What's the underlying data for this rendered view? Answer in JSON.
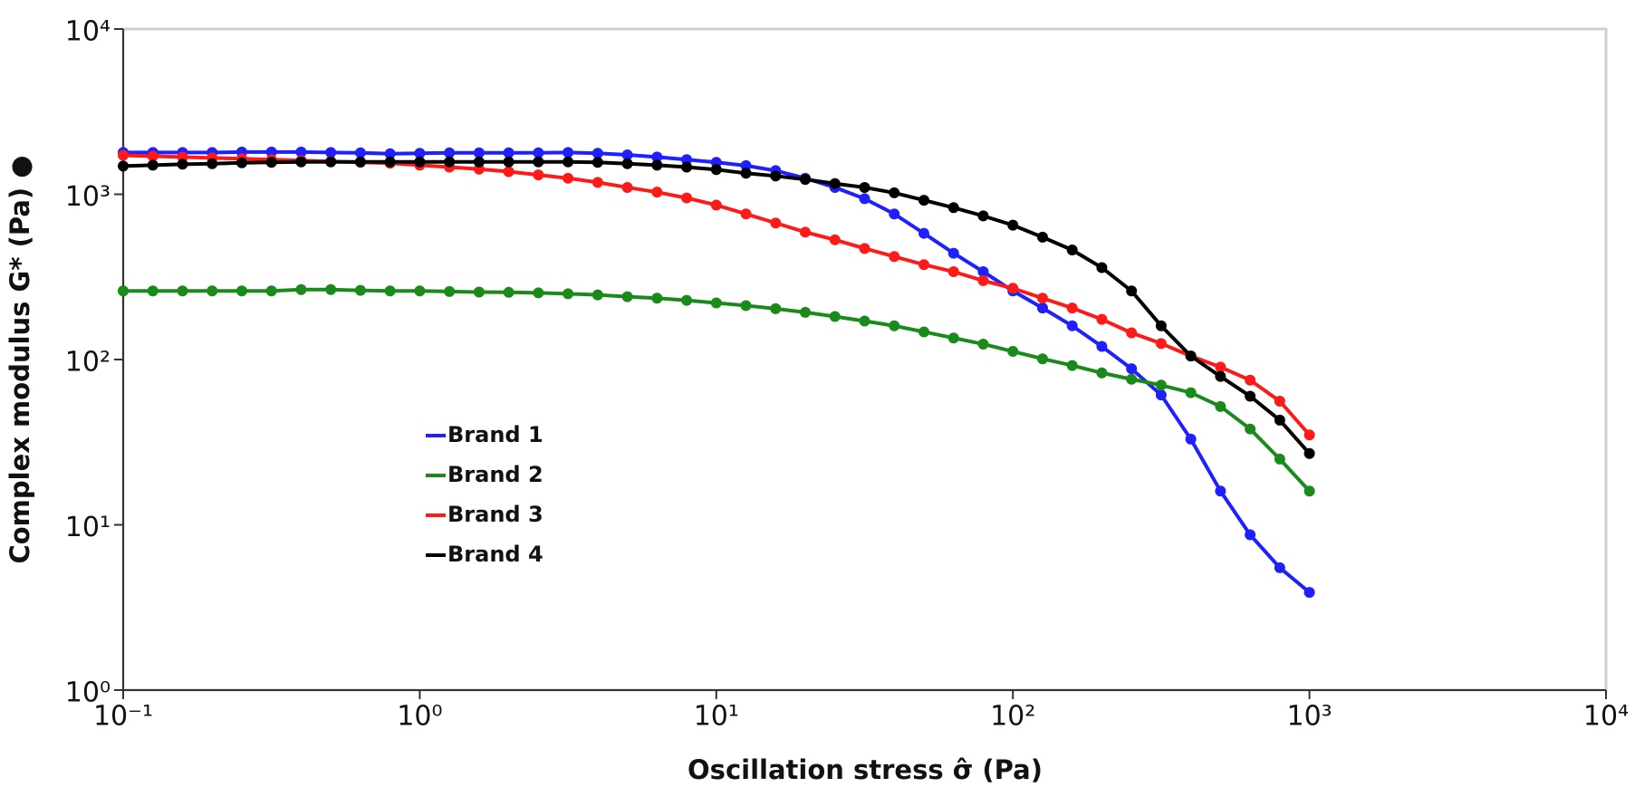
{
  "chart_data": {
    "type": "line",
    "x_label": "Oscillation stress σ̂ (Pa)",
    "y_label": "Complex modulus G* (Pa) ●",
    "log_x": true,
    "log_y": true,
    "legend": "center-left",
    "x": [
      0.1,
      0.1259,
      0.1585,
      0.1995,
      0.2512,
      0.3162,
      0.3981,
      0.5012,
      0.631,
      0.7943,
      1,
      1.259,
      1.585,
      1.995,
      2.512,
      3.162,
      3.981,
      5.012,
      6.31,
      7.943,
      10,
      12.59,
      15.85,
      19.95,
      25.12,
      31.62,
      39.81,
      50.12,
      63.1,
      79.43,
      100,
      125.9,
      158.5,
      199.5,
      251.2,
      316.2,
      398.1,
      501.2,
      631,
      794.3,
      1000
    ],
    "series": [
      {
        "name": "Brand 1",
        "color": "#1f1fff",
        "values": [
          1790,
          1790,
          1790,
          1790,
          1800,
          1800,
          1800,
          1790,
          1780,
          1760,
          1770,
          1780,
          1780,
          1780,
          1780,
          1790,
          1770,
          1730,
          1680,
          1620,
          1560,
          1490,
          1390,
          1250,
          1100,
          940,
          760,
          580,
          440,
          340,
          260,
          205,
          160,
          120,
          88,
          61,
          33,
          16,
          8.7,
          5.5,
          3.9
        ]
      },
      {
        "name": "Brand 2",
        "color": "#1a8a1a",
        "values": [
          260,
          260,
          260,
          260,
          260,
          260,
          265,
          265,
          262,
          260,
          260,
          258,
          256,
          255,
          253,
          250,
          246,
          240,
          235,
          228,
          220,
          212,
          203,
          193,
          182,
          171,
          160,
          147,
          135,
          124,
          112,
          101,
          92,
          83,
          76,
          70,
          63,
          52,
          38,
          25,
          16
        ]
      },
      {
        "name": "Brand 3",
        "color": "#ff1a1a",
        "values": [
          1720,
          1700,
          1680,
          1660,
          1640,
          1620,
          1600,
          1580,
          1560,
          1540,
          1500,
          1460,
          1420,
          1370,
          1310,
          1250,
          1180,
          1100,
          1030,
          950,
          860,
          760,
          670,
          590,
          530,
          470,
          420,
          375,
          340,
          300,
          270,
          235,
          205,
          175,
          145,
          125,
          105,
          90,
          75,
          56,
          35
        ]
      },
      {
        "name": "Brand 4",
        "color": "#000000",
        "values": [
          1480,
          1500,
          1520,
          1530,
          1550,
          1560,
          1570,
          1570,
          1570,
          1570,
          1570,
          1570,
          1570,
          1570,
          1570,
          1570,
          1560,
          1530,
          1500,
          1460,
          1410,
          1340,
          1290,
          1230,
          1160,
          1100,
          1020,
          920,
          830,
          740,
          650,
          550,
          460,
          360,
          260,
          160,
          105,
          79,
          60,
          43,
          27
        ]
      }
    ],
    "xlim": [
      0.1,
      10000
    ],
    "ylim": [
      1,
      10000
    ],
    "xticks": [
      {
        "value": 0.1,
        "label": "10⁻¹"
      },
      {
        "value": 1,
        "label": "10⁰"
      },
      {
        "value": 10,
        "label": "10¹"
      },
      {
        "value": 100,
        "label": "10²"
      },
      {
        "value": 1000,
        "label": "10³"
      },
      {
        "value": 10000,
        "label": "10⁴"
      }
    ],
    "yticks": [
      {
        "value": 1,
        "label": "10⁰"
      },
      {
        "value": 10,
        "label": "10¹"
      },
      {
        "value": 100,
        "label": "10²"
      },
      {
        "value": 1000,
        "label": "10³"
      },
      {
        "value": 10000,
        "label": "10⁴"
      }
    ]
  }
}
